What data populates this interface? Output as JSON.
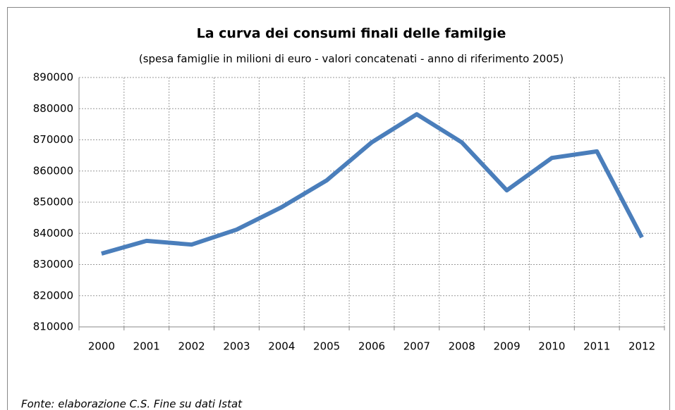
{
  "chart_data": {
    "type": "line",
    "title": "La curva dei consumi finali delle familgie",
    "subtitle": "(spesa famiglie in milioni di euro - valori concatenati - anno di riferimento 2005)",
    "categories": [
      "2000",
      "2001",
      "2002",
      "2003",
      "2004",
      "2005",
      "2006",
      "2007",
      "2008",
      "2009",
      "2010",
      "2011",
      "2012"
    ],
    "series": [
      {
        "name": "Spesa famiglie",
        "color": "#4a7ebb",
        "values": [
          833500,
          837600,
          836400,
          841200,
          848400,
          857000,
          869200,
          878200,
          869200,
          853800,
          864200,
          866300,
          838700
        ]
      }
    ],
    "ylim": [
      810000,
      890000
    ],
    "yticks": [
      810000,
      820000,
      830000,
      840000,
      850000,
      860000,
      870000,
      880000,
      890000
    ],
    "grid": true,
    "legend": false,
    "source": "Fonte: elaborazione C.S. Fine su dati Istat"
  }
}
